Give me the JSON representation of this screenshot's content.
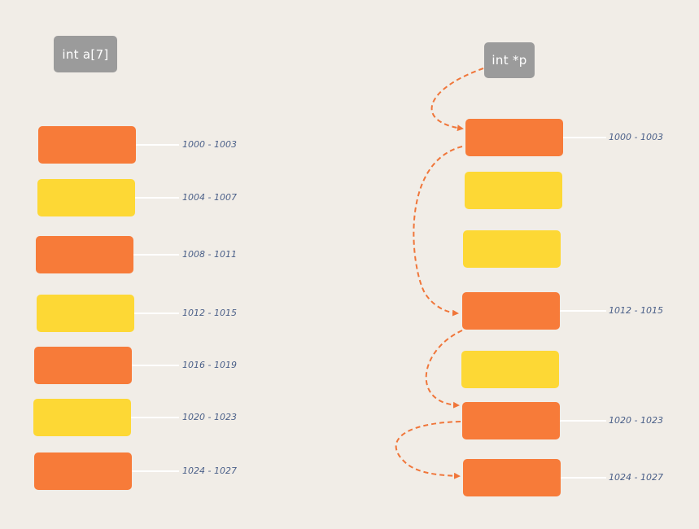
{
  "array_label": "int a[7]",
  "pointer_label": "int *p",
  "colors": {
    "background": "#f1ede7",
    "orange": "#f77b39",
    "yellow": "#fdd835",
    "tag": "#9b9b9b",
    "arrow": "#f0763a",
    "address_text": "#4a5f88"
  },
  "array_cells": [
    {
      "color": "orange",
      "address": "1000 - 1003"
    },
    {
      "color": "yellow",
      "address": "1004 - 1007"
    },
    {
      "color": "orange",
      "address": "1008 - 1011"
    },
    {
      "color": "yellow",
      "address": "1012 - 1015"
    },
    {
      "color": "orange",
      "address": "1016 - 1019"
    },
    {
      "color": "yellow",
      "address": "1020 - 1023"
    },
    {
      "color": "orange",
      "address": "1024 - 1027"
    }
  ],
  "pointer_cells": [
    {
      "color": "orange",
      "address": "1000 - 1003"
    },
    {
      "color": "yellow",
      "address": ""
    },
    {
      "color": "yellow",
      "address": ""
    },
    {
      "color": "orange",
      "address": "1012 - 1015"
    },
    {
      "color": "yellow",
      "address": ""
    },
    {
      "color": "orange",
      "address": "1020 - 1023"
    },
    {
      "color": "orange",
      "address": "1024 - 1027"
    }
  ]
}
